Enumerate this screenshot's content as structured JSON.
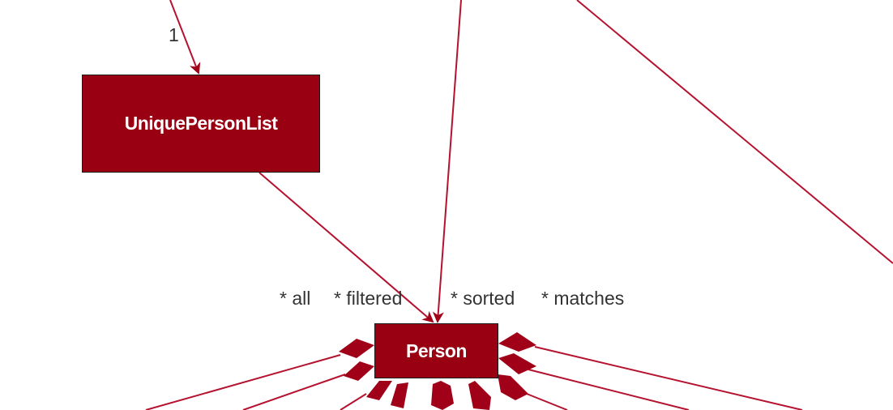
{
  "colors": {
    "class_fill": "#990011",
    "line": "#b5122f",
    "text": "#333333"
  },
  "classes": {
    "unique_person_list": "UniquePersonList",
    "person": "Person"
  },
  "multiplicities": {
    "top_to_upl": "1",
    "all": "* all",
    "filtered": "* filtered",
    "sorted": "* sorted",
    "matches": "* matches"
  }
}
